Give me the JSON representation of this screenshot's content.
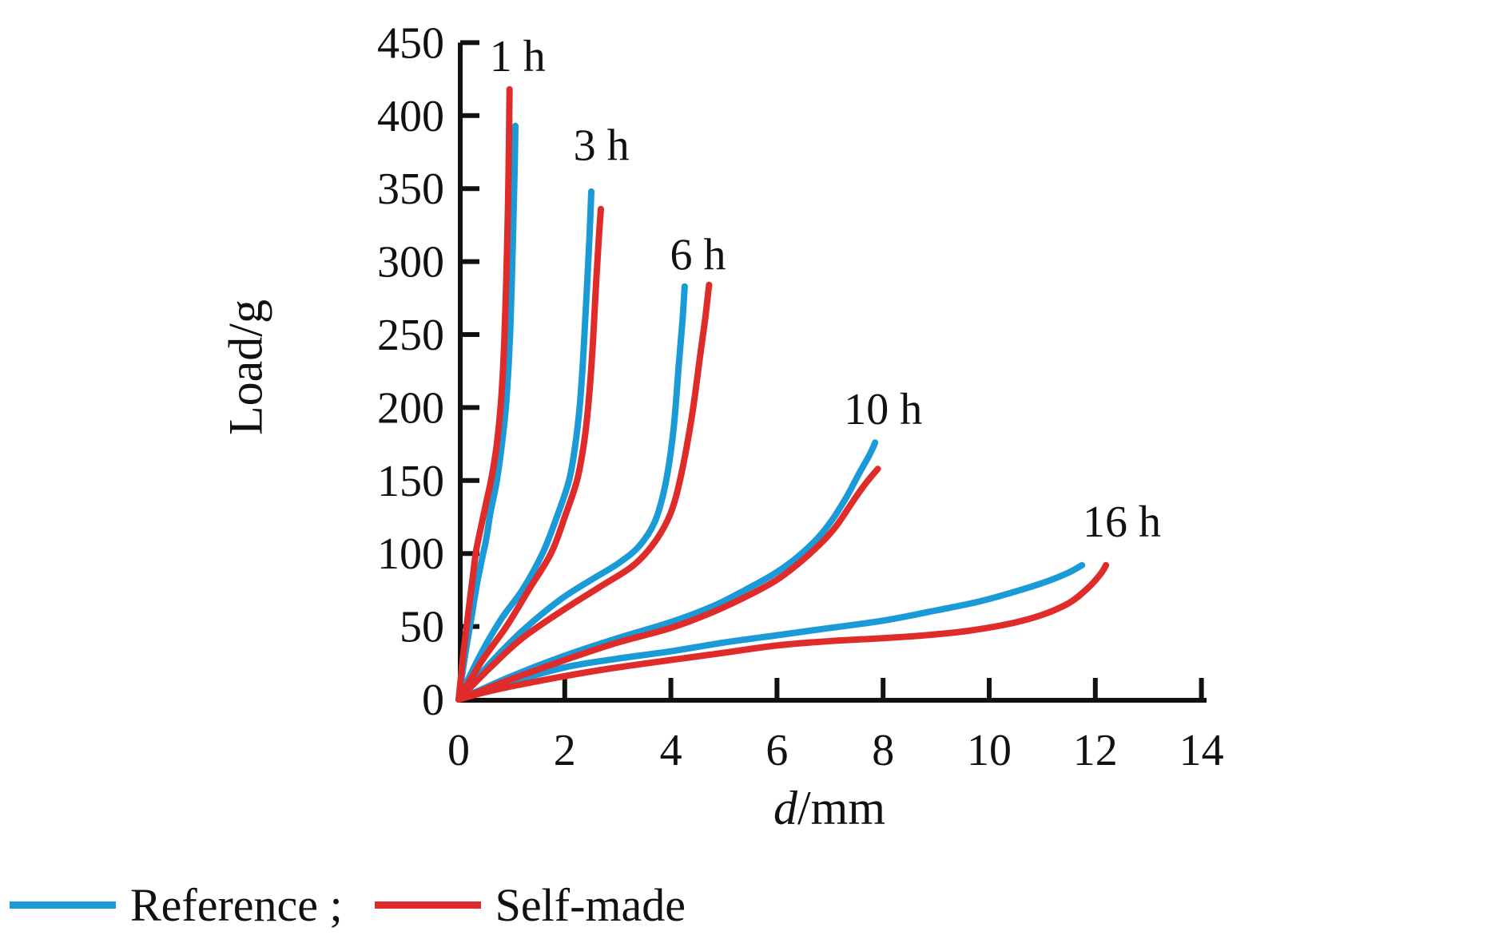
{
  "figure": {
    "background": "#ffffff"
  },
  "chart_data": {
    "type": "line",
    "title": "",
    "xlabel_italic": "d",
    "xlabel_rest": "/mm",
    "ylabel": "Load/g",
    "xlim": [
      0,
      14
    ],
    "ylim": [
      0,
      450
    ],
    "x_ticks": [
      0,
      2,
      4,
      6,
      8,
      10,
      12,
      14
    ],
    "y_ticks": [
      0,
      50,
      100,
      150,
      200,
      250,
      300,
      350,
      400,
      450
    ],
    "grid": false,
    "legend_position": "bottom-left",
    "colors": {
      "reference": "#1A9AD7",
      "self_made": "#E02B2B",
      "axis": "#111111"
    },
    "annotations": [
      {
        "label": "1 h",
        "x": 1.11,
        "y": 441
      },
      {
        "label": "3 h",
        "x": 2.69,
        "y": 380
      },
      {
        "label": "6 h",
        "x": 4.51,
        "y": 305
      },
      {
        "label": "10 h",
        "x": 8.0,
        "y": 199
      },
      {
        "label": "16 h",
        "x": 12.5,
        "y": 122
      }
    ],
    "series": [
      {
        "name": "1 h Reference",
        "group": "1 h",
        "color_key": "reference",
        "points": [
          [
            0,
            0
          ],
          [
            0.12,
            30
          ],
          [
            0.25,
            58
          ],
          [
            0.35,
            80
          ],
          [
            0.45,
            98
          ],
          [
            0.52,
            110
          ],
          [
            0.6,
            128
          ],
          [
            0.72,
            150
          ],
          [
            0.82,
            176
          ],
          [
            0.9,
            205
          ],
          [
            0.97,
            250
          ],
          [
            1.02,
            310
          ],
          [
            1.05,
            355
          ],
          [
            1.07,
            393
          ]
        ]
      },
      {
        "name": "1 h Self-made",
        "group": "1 h",
        "color_key": "self_made",
        "points": [
          [
            0,
            0
          ],
          [
            0.1,
            35
          ],
          [
            0.2,
            65
          ],
          [
            0.28,
            88
          ],
          [
            0.33,
            102
          ],
          [
            0.42,
            118
          ],
          [
            0.52,
            135
          ],
          [
            0.62,
            152
          ],
          [
            0.72,
            175
          ],
          [
            0.8,
            205
          ],
          [
            0.86,
            245
          ],
          [
            0.91,
            305
          ],
          [
            0.94,
            360
          ],
          [
            0.96,
            418
          ]
        ]
      },
      {
        "name": "3 h Reference",
        "group": "3 h",
        "color_key": "reference",
        "points": [
          [
            0,
            0
          ],
          [
            0.4,
            30
          ],
          [
            0.8,
            55
          ],
          [
            1.2,
            75
          ],
          [
            1.58,
            100
          ],
          [
            1.85,
            125
          ],
          [
            2.08,
            150
          ],
          [
            2.2,
            175
          ],
          [
            2.28,
            200
          ],
          [
            2.34,
            230
          ],
          [
            2.4,
            270
          ],
          [
            2.46,
            312
          ],
          [
            2.5,
            348
          ]
        ]
      },
      {
        "name": "3 h Self-made",
        "group": "3 h",
        "color_key": "self_made",
        "points": [
          [
            0,
            0
          ],
          [
            0.45,
            27
          ],
          [
            0.9,
            50
          ],
          [
            1.32,
            75
          ],
          [
            1.74,
            100
          ],
          [
            2.0,
            125
          ],
          [
            2.23,
            150
          ],
          [
            2.36,
            175
          ],
          [
            2.44,
            200
          ],
          [
            2.52,
            238
          ],
          [
            2.58,
            278
          ],
          [
            2.64,
            315
          ],
          [
            2.68,
            336
          ]
        ]
      },
      {
        "name": "6 h Reference",
        "group": "6 h",
        "color_key": "reference",
        "points": [
          [
            0,
            0
          ],
          [
            0.6,
            25
          ],
          [
            1.2,
            47
          ],
          [
            1.9,
            68
          ],
          [
            2.5,
            82
          ],
          [
            3.0,
            93
          ],
          [
            3.4,
            105
          ],
          [
            3.7,
            122
          ],
          [
            3.9,
            148
          ],
          [
            4.05,
            185
          ],
          [
            4.15,
            230
          ],
          [
            4.22,
            260
          ],
          [
            4.26,
            283
          ]
        ]
      },
      {
        "name": "6 h Self-made",
        "group": "6 h",
        "color_key": "self_made",
        "points": [
          [
            0,
            0
          ],
          [
            0.6,
            22
          ],
          [
            1.2,
            42
          ],
          [
            2.0,
            62
          ],
          [
            2.7,
            78
          ],
          [
            3.3,
            92
          ],
          [
            3.7,
            108
          ],
          [
            4.0,
            128
          ],
          [
            4.2,
            155
          ],
          [
            4.4,
            195
          ],
          [
            4.55,
            235
          ],
          [
            4.65,
            262
          ],
          [
            4.72,
            284
          ]
        ]
      },
      {
        "name": "10 h Reference",
        "group": "10 h",
        "color_key": "reference",
        "points": [
          [
            0,
            0
          ],
          [
            0.5,
            8
          ],
          [
            1.0,
            16
          ],
          [
            2.0,
            30
          ],
          [
            3.0,
            42
          ],
          [
            4.0,
            53
          ],
          [
            4.8,
            64
          ],
          [
            5.4,
            75
          ],
          [
            5.9,
            85
          ],
          [
            6.3,
            95
          ],
          [
            6.7,
            108
          ],
          [
            7.0,
            121
          ],
          [
            7.3,
            138
          ],
          [
            7.55,
            155
          ],
          [
            7.75,
            168
          ],
          [
            7.85,
            176
          ]
        ]
      },
      {
        "name": "10 h Self-made",
        "group": "10 h",
        "color_key": "self_made",
        "points": [
          [
            0,
            0
          ],
          [
            0.5,
            7
          ],
          [
            1.0,
            14
          ],
          [
            2.0,
            27
          ],
          [
            3.0,
            39
          ],
          [
            4.0,
            49
          ],
          [
            4.8,
            60
          ],
          [
            5.5,
            72
          ],
          [
            6.0,
            82
          ],
          [
            6.4,
            93
          ],
          [
            6.8,
            106
          ],
          [
            7.1,
            118
          ],
          [
            7.4,
            134
          ],
          [
            7.65,
            147
          ],
          [
            7.9,
            158
          ]
        ]
      },
      {
        "name": "16 h Reference",
        "group": "16 h",
        "color_key": "reference",
        "points": [
          [
            0,
            0
          ],
          [
            0.5,
            6
          ],
          [
            1.0,
            12
          ],
          [
            2.0,
            22
          ],
          [
            3.0,
            28
          ],
          [
            4.0,
            33
          ],
          [
            5.0,
            39
          ],
          [
            6.0,
            44
          ],
          [
            7.0,
            49
          ],
          [
            8.0,
            54
          ],
          [
            9.0,
            61
          ],
          [
            9.8,
            67
          ],
          [
            10.5,
            74
          ],
          [
            11.1,
            81
          ],
          [
            11.5,
            87
          ],
          [
            11.75,
            92
          ]
        ]
      },
      {
        "name": "16 h Self-made",
        "group": "16 h",
        "color_key": "self_made",
        "points": [
          [
            0,
            0
          ],
          [
            0.5,
            5
          ],
          [
            1.0,
            9
          ],
          [
            2.0,
            16
          ],
          [
            3.0,
            22
          ],
          [
            4.0,
            27
          ],
          [
            5.0,
            32
          ],
          [
            6.0,
            37
          ],
          [
            7.0,
            40
          ],
          [
            8.0,
            42
          ],
          [
            8.8,
            44
          ],
          [
            9.6,
            47
          ],
          [
            10.4,
            52
          ],
          [
            11.0,
            58
          ],
          [
            11.5,
            66
          ],
          [
            11.85,
            76
          ],
          [
            12.1,
            86
          ],
          [
            12.2,
            92
          ]
        ]
      }
    ]
  },
  "legend": {
    "items": [
      {
        "label": "Reference ;",
        "color_key": "reference"
      },
      {
        "label": "Self-made",
        "color_key": "self_made"
      }
    ]
  }
}
